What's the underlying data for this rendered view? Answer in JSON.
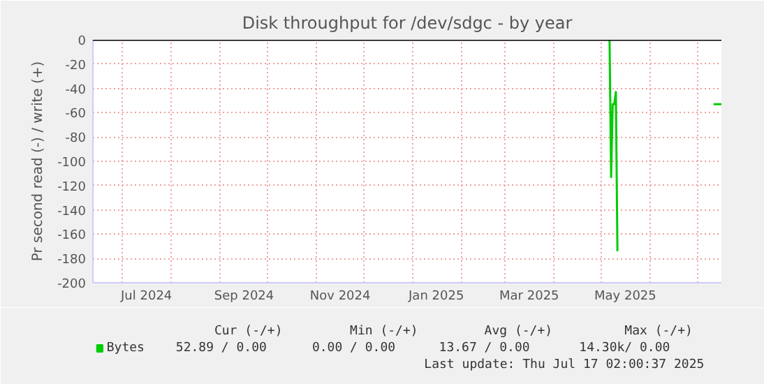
{
  "chart_data": {
    "type": "line",
    "title": "Disk throughput for /dev/sdgc - by year",
    "ylabel": "Pr second read (-) / write (+)",
    "x": [
      "2025-05-06",
      "2025-05-07",
      "2025-05-08",
      "2025-05-09",
      "2025-05-10",
      "2025-05-11",
      "2025-05-12",
      "2025-07-11",
      "2025-07-16"
    ],
    "series": [
      {
        "name": "Bytes",
        "color": "#00cc00",
        "values": [
          0,
          -113,
          -53,
          -53,
          -43,
          -174,
          null,
          -53,
          -53
        ]
      }
    ],
    "xlim": [
      "2024-06-12",
      "2025-07-16"
    ],
    "xticks": [
      {
        "value": "2024-07-01",
        "label": null
      },
      {
        "value": "2024-07-16",
        "label": "Jul 2024"
      },
      {
        "value": "2024-08-01",
        "label": null
      },
      {
        "value": "2024-09-01",
        "label": null
      },
      {
        "value": "2024-09-16",
        "label": "Sep 2024"
      },
      {
        "value": "2024-10-01",
        "label": null
      },
      {
        "value": "2024-11-01",
        "label": null
      },
      {
        "value": "2024-11-16",
        "label": "Nov 2024"
      },
      {
        "value": "2024-12-01",
        "label": null
      },
      {
        "value": "2025-01-01",
        "label": null
      },
      {
        "value": "2025-01-16",
        "label": "Jan 2025"
      },
      {
        "value": "2025-02-01",
        "label": null
      },
      {
        "value": "2025-03-01",
        "label": null
      },
      {
        "value": "2025-03-16",
        "label": "Mar 2025"
      },
      {
        "value": "2025-04-01",
        "label": null
      },
      {
        "value": "2025-05-01",
        "label": null
      },
      {
        "value": "2025-05-16",
        "label": "May 2025"
      },
      {
        "value": "2025-06-01",
        "label": null
      },
      {
        "value": "2025-07-01",
        "label": null
      }
    ],
    "ylim": [
      -200,
      0
    ],
    "yticks": [
      -200,
      -180,
      -160,
      -140,
      -120,
      -100,
      -80,
      -60,
      -40,
      -20,
      0
    ],
    "ref_lines": [
      {
        "axis": "y",
        "value": 0,
        "color": "#000000"
      }
    ],
    "grid": true,
    "legend": "bottom left",
    "annotations": [
      "Cur (-/+)",
      "Min (-/+)",
      "Avg (-/+)",
      "Max (-/+)",
      "52.89 /    0.00",
      "0.00 /    0.00",
      "13.67 /    0.00",
      "14.30k/    0.00",
      "Last update: Thu Jul 17 02:00:37 2025"
    ]
  }
}
